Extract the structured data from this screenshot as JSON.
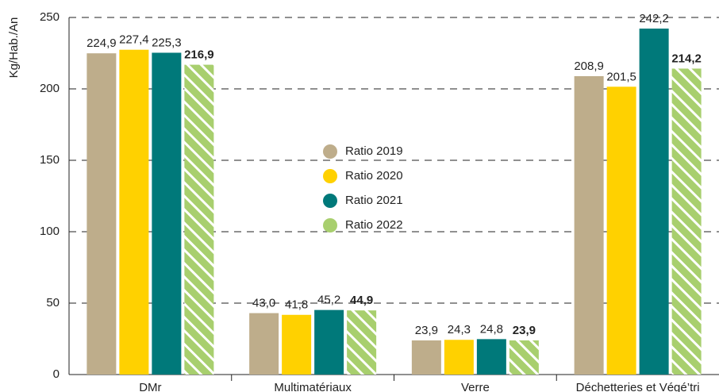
{
  "chart_data": {
    "type": "bar",
    "y_label": "Kg/Hab./An",
    "categories": [
      "DMr",
      "Multimatériaux",
      "Verre",
      "Déchetteries et Végé’tri"
    ],
    "series": [
      {
        "name": "Ratio 2019",
        "color": "#bead8b",
        "values": [
          224.9,
          43.0,
          23.9,
          208.9
        ],
        "value_labels": [
          "224,9",
          "43,0",
          "23,9",
          "208,9"
        ]
      },
      {
        "name": "Ratio 2020",
        "color": "#ffd100",
        "values": [
          227.4,
          41.8,
          24.3,
          201.5
        ],
        "value_labels": [
          "227,4",
          "41,8",
          "24,3",
          "201,5"
        ]
      },
      {
        "name": "Ratio 2021",
        "color": "#00797a",
        "values": [
          225.3,
          45.2,
          24.8,
          242.2
        ],
        "value_labels": [
          "225,3",
          "45,2",
          "24,8",
          "242,2"
        ]
      },
      {
        "name": "Ratio 2022",
        "color": "#a8cf6e",
        "hatch": true,
        "values": [
          216.9,
          44.9,
          23.9,
          214.2
        ],
        "value_labels": [
          "216,9",
          "44,9",
          "23,9",
          "214,2"
        ]
      }
    ],
    "ylim": [
      0,
      250
    ],
    "yticks": [
      0,
      50,
      100,
      150,
      200,
      250
    ],
    "grid": true
  }
}
